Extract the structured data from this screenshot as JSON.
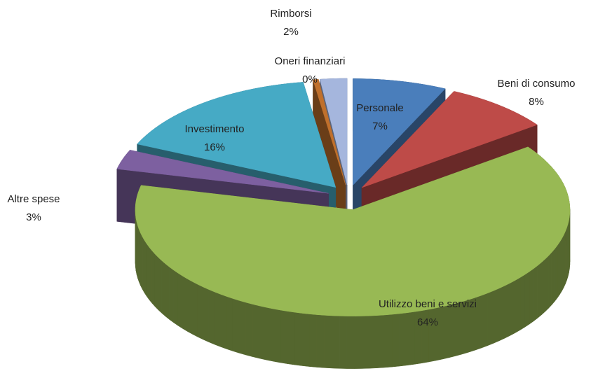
{
  "chart_data": {
    "type": "pie3d",
    "categories": [
      "Personale",
      "Beni di consumo",
      "Utilizzo beni e servizi",
      "Altre spese",
      "Investimento",
      "Oneri finanziari",
      "Rimborsi"
    ],
    "values": [
      7,
      8,
      64,
      3,
      16,
      0.4,
      2
    ],
    "value_labels": [
      "7%",
      "8%",
      "64%",
      "3%",
      "16%",
      "0%",
      "2%"
    ],
    "colors": [
      "#4a7ebb",
      "#be4b48",
      "#98b954",
      "#7d60a0",
      "#46aac5",
      "#c0702c",
      "#a5b6dd"
    ]
  }
}
